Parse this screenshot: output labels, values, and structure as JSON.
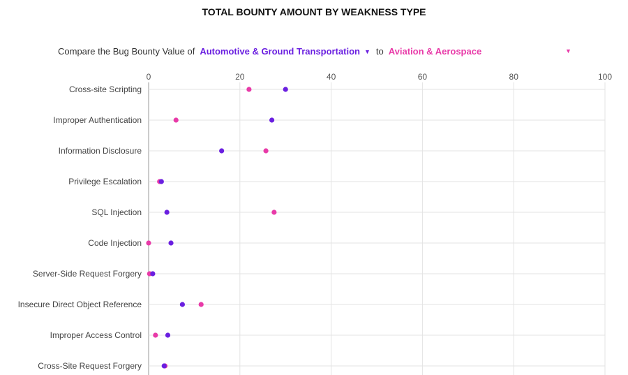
{
  "header": {
    "title": "TOTAL BOUNTY AMOUNT BY WEAKNESS TYPE",
    "compare_prefix": "Compare the Bug Bounty Value of",
    "select_a": "Automotive & Ground Transportation",
    "connector": "to",
    "select_b": "Aviation & Aerospace",
    "dropdown_arrow": "▼"
  },
  "colors": {
    "series_a": "#6a1fe0",
    "series_b": "#e83aa8",
    "grid": "#e3e3e3"
  },
  "chart_data": {
    "type": "scatter",
    "categories": [
      "Cross-site Scripting",
      "Improper Authentication",
      "Information Disclosure",
      "Privilege Escalation",
      "SQL Injection",
      "Code Injection",
      "Server-Side Request Forgery",
      "Insecure Direct Object Reference",
      "Improper Access Control",
      "Cross-Site Request Forgery"
    ],
    "series": [
      {
        "name": "Automotive & Ground Transportation",
        "values": [
          30,
          27,
          16,
          2.8,
          4,
          4.9,
          0.9,
          7.4,
          4.2,
          3.4
        ]
      },
      {
        "name": "Aviation & Aerospace",
        "values": [
          22,
          6,
          25.7,
          2.4,
          27.5,
          0,
          0.2,
          11.5,
          1.5,
          3.6
        ]
      }
    ],
    "xlim": [
      0,
      100
    ],
    "xticks": [
      "0",
      "20",
      "40",
      "60",
      "80",
      "100"
    ],
    "grid": true,
    "axis_position": "top"
  }
}
